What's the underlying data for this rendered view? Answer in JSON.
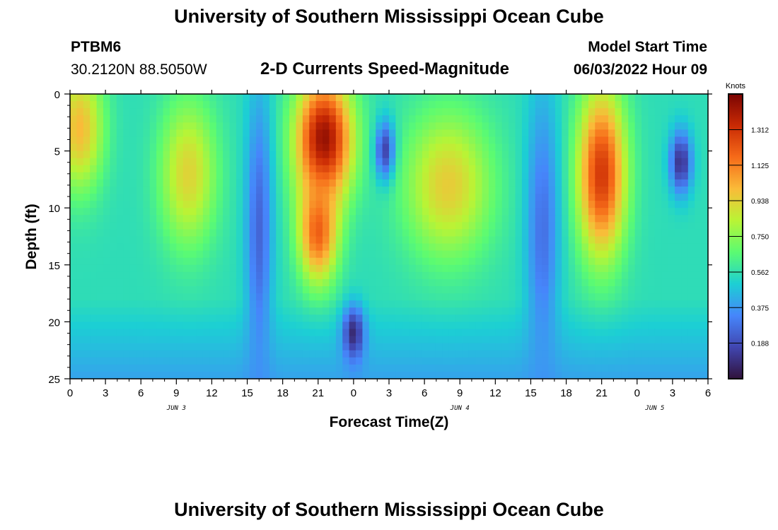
{
  "header": {
    "title": "University of Southern Mississippi Ocean Cube",
    "station_id": "PTBM6",
    "coordinates": "30.2120N  88.5050W",
    "plot_title": "2-D Currents Speed-Magnitude",
    "model_start_label": "Model Start Time",
    "model_start_value": "06/03/2022 Hour 09"
  },
  "footer": {
    "title": "University of Southern Mississippi Ocean Cube"
  },
  "chart_data": {
    "type": "heatmap",
    "title": "2-D Currents Speed-Magnitude",
    "xlabel": "Forecast Time(Z)",
    "ylabel": "Depth (ft)",
    "x_tick_labels": [
      "0",
      "3",
      "6",
      "9",
      "12",
      "15",
      "18",
      "21",
      "0",
      "3",
      "6",
      "9",
      "12",
      "15",
      "18",
      "21",
      "0",
      "3",
      "6"
    ],
    "date_labels": [
      {
        "label": "JUN 3",
        "at_tick_index": 3
      },
      {
        "label": "JUN 4",
        "at_tick_index": 11
      },
      {
        "label": "JUN 5",
        "at_tick_index": 16.5
      }
    ],
    "x_range_hours": [
      0,
      54
    ],
    "y_tick_labels": [
      "0",
      "5",
      "10",
      "15",
      "20",
      "25"
    ],
    "ylim": [
      0,
      25
    ],
    "y_inverted": true,
    "colorbar": {
      "title": "Knots",
      "tick_labels": [
        "1.312",
        "1.125",
        "0.938",
        "0.750",
        "0.562",
        "0.375",
        "0.188"
      ],
      "range": [
        0,
        1.5
      ],
      "colors": [
        "#30123b",
        "#4146b0",
        "#4686fb",
        "#1ccfd4",
        "#5bfb72",
        "#b9f435",
        "#fabb39",
        "#f66b19",
        "#c92a04",
        "#7a0403"
      ]
    },
    "features": [
      {
        "x_hour": 0.8,
        "depth_ft": 3.0,
        "peak_knots": 1.0,
        "x_spread_hours": 2.2,
        "depth_spread_ft": 6.0
      },
      {
        "x_hour": 10.0,
        "depth_ft": 7.0,
        "peak_knots": 0.93,
        "x_spread_hours": 2.6,
        "depth_spread_ft": 7.0
      },
      {
        "x_hour": 21.5,
        "depth_ft": 4.0,
        "peak_knots": 1.45,
        "x_spread_hours": 2.6,
        "depth_spread_ft": 6.0
      },
      {
        "x_hour": 21.0,
        "depth_ft": 12.0,
        "peak_knots": 1.2,
        "x_spread_hours": 1.8,
        "depth_spread_ft": 5.0
      },
      {
        "x_hour": 26.7,
        "depth_ft": 5.0,
        "peak_knots": 0.08,
        "x_spread_hours": 0.9,
        "depth_spread_ft": 2.8
      },
      {
        "x_hour": 24.0,
        "depth_ft": 21.0,
        "peak_knots": 0.08,
        "x_spread_hours": 1.0,
        "depth_spread_ft": 2.6
      },
      {
        "x_hour": 32.0,
        "depth_ft": 8.0,
        "peak_knots": 0.95,
        "x_spread_hours": 4.0,
        "depth_spread_ft": 7.0
      },
      {
        "x_hour": 45.0,
        "depth_ft": 7.0,
        "peak_knots": 1.3,
        "x_spread_hours": 2.2,
        "depth_spread_ft": 8.0
      },
      {
        "x_hour": 51.7,
        "depth_ft": 6.0,
        "peak_knots": 0.1,
        "x_spread_hours": 1.0,
        "depth_spread_ft": 3.0
      },
      {
        "x_hour": 16.0,
        "depth_ft": 12.0,
        "peak_knots": 0.25,
        "x_spread_hours": 1.2,
        "depth_spread_ft": 13.0
      },
      {
        "x_hour": 40.0,
        "depth_ft": 12.0,
        "peak_knots": 0.28,
        "x_spread_hours": 1.5,
        "depth_spread_ft": 13.0
      }
    ]
  }
}
